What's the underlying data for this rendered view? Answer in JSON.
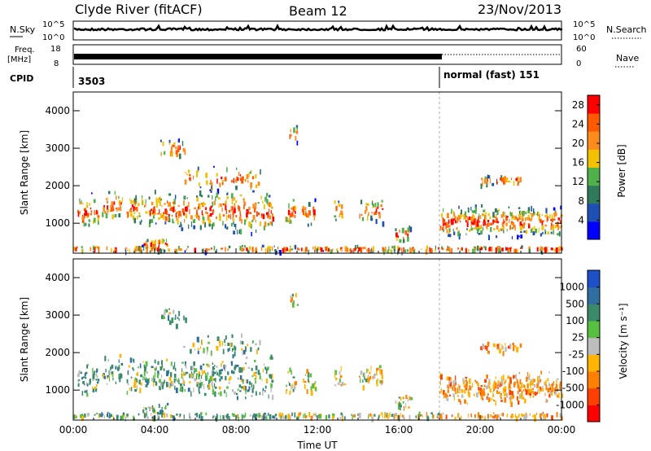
{
  "header": {
    "station": "Clyde River (fitACF)",
    "beam": "Beam 12",
    "date": "23/Nov/2013"
  },
  "top_panels": {
    "nsky_label": "N.Sky",
    "nsky_ticks": [
      "10^5",
      "10^0"
    ],
    "nsearch_label": "N.Search",
    "nsearch_ticks": [
      "10^5",
      "10^0"
    ],
    "freq_label": "Freq.",
    "freq_unit": "[MHz]",
    "freq_ticks": [
      "18",
      "8"
    ],
    "nave_label": "Nave",
    "nave_ticks": [
      "60",
      "0"
    ],
    "cpid_label": "CPID",
    "cpid_segments": [
      {
        "start_hour": 0,
        "text": "3503"
      },
      {
        "start_hour": 18,
        "text": "normal (fast) 151"
      }
    ]
  },
  "chart_data": [
    {
      "type": "heatmap",
      "panel": "power",
      "ylabel": "Slant Range [km]",
      "xlabel": "",
      "xlim_hours": [
        0,
        24
      ],
      "ylim": [
        200,
        4500
      ],
      "yticks": [
        1000,
        2000,
        3000,
        4000
      ],
      "colorbar": {
        "label": "Power [dB]",
        "ticks": [
          4,
          8,
          12,
          16,
          20,
          24,
          28
        ],
        "range": [
          0,
          30
        ],
        "colors": [
          "#0000ff",
          "#1e4fb4",
          "#2f7a5a",
          "#50b04a",
          "#f2c200",
          "#ff8c1a",
          "#ff5a00",
          "#ff0000"
        ]
      }
    },
    {
      "type": "heatmap",
      "panel": "velocity",
      "ylabel": "Slant Range [km]",
      "xlabel": "Time UT",
      "xlim_hours": [
        0,
        24
      ],
      "xticks": [
        "00:00",
        "04:00",
        "08:00",
        "12:00",
        "16:00",
        "20:00",
        "00:00"
      ],
      "ylim": [
        200,
        4500
      ],
      "yticks": [
        1000,
        2000,
        3000,
        4000
      ],
      "colorbar": {
        "label": "Velocity [m s⁻¹]",
        "ticks": [
          "1000",
          "500",
          "100",
          "25",
          "-25",
          "-100",
          "-500",
          "-1000"
        ],
        "colors": [
          "#1e50c8",
          "#2e6ea0",
          "#3a8a6a",
          "#58c040",
          "#bdbdbd",
          "#ffb400",
          "#ff8000",
          "#ff4000",
          "#ff0000"
        ]
      }
    }
  ]
}
